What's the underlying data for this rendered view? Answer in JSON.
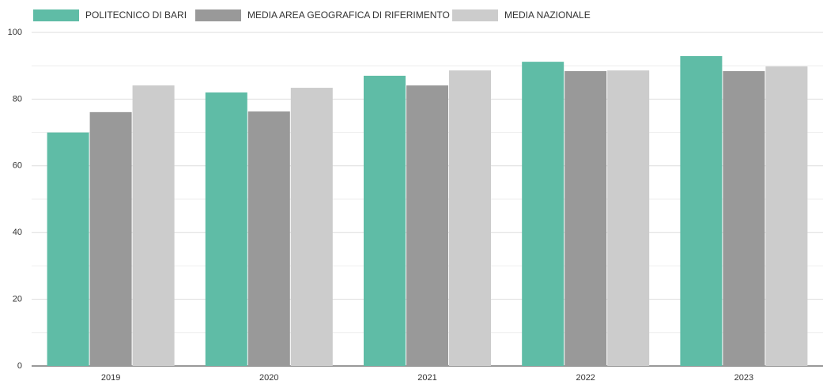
{
  "chart_data": {
    "type": "bar",
    "categories": [
      "2019",
      "2020",
      "2021",
      "2022",
      "2023"
    ],
    "series": [
      {
        "name": "POLITECNICO DI BARI",
        "color": "#5fbca6",
        "values": [
          70,
          82,
          87,
          91.2,
          92.9
        ]
      },
      {
        "name": "MEDIA AREA GEOGRAFICA DI RIFERIMENTO",
        "color": "#999999",
        "values": [
          76.1,
          76.3,
          84.1,
          88.4,
          88.4
        ]
      },
      {
        "name": "MEDIA NAZIONALE",
        "color": "#cccccc",
        "values": [
          84.1,
          83.4,
          88.6,
          88.6,
          89.8
        ]
      }
    ],
    "ylim": [
      0,
      100
    ],
    "yticks": [
      0,
      20,
      40,
      60,
      80,
      100
    ],
    "minor_yticks": [
      10,
      30,
      50,
      70,
      90
    ],
    "grid": true,
    "legend": "top"
  }
}
